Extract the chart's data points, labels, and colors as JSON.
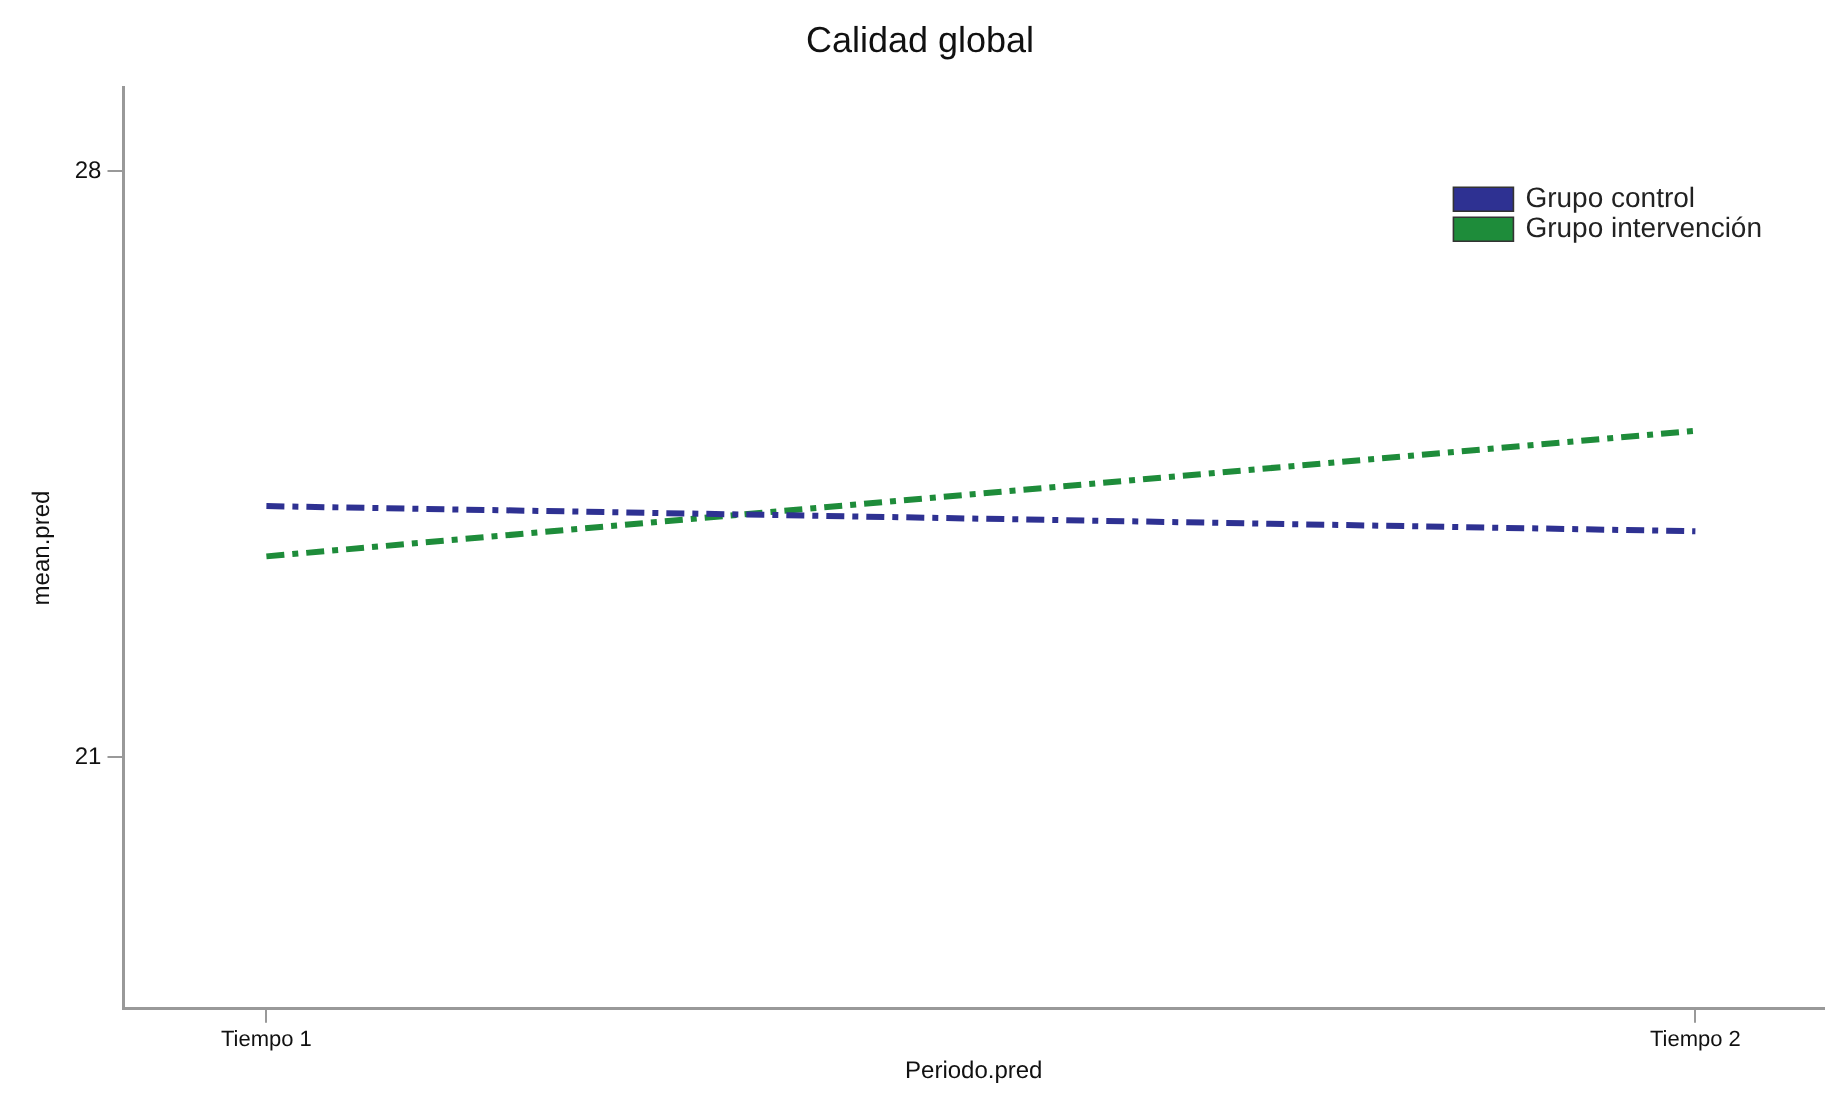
{
  "chart_data": {
    "type": "line",
    "title": "Calidad global",
    "xlabel": "Periodo.pred",
    "ylabel": "mean.pred",
    "categories": [
      "Tiempo 1",
      "Tiempo 2"
    ],
    "series": [
      {
        "name": "Grupo control",
        "color": "#2e3192",
        "values": [
          24.0,
          23.7
        ]
      },
      {
        "name": "Grupo intervención",
        "color": "#1e8c3a",
        "values": [
          23.4,
          24.9
        ]
      }
    ],
    "ylim": [
      18,
      29
    ],
    "yticks": [
      21,
      28
    ],
    "grid": false,
    "legend": "top right",
    "marker": "none",
    "line_style": "dashed"
  }
}
